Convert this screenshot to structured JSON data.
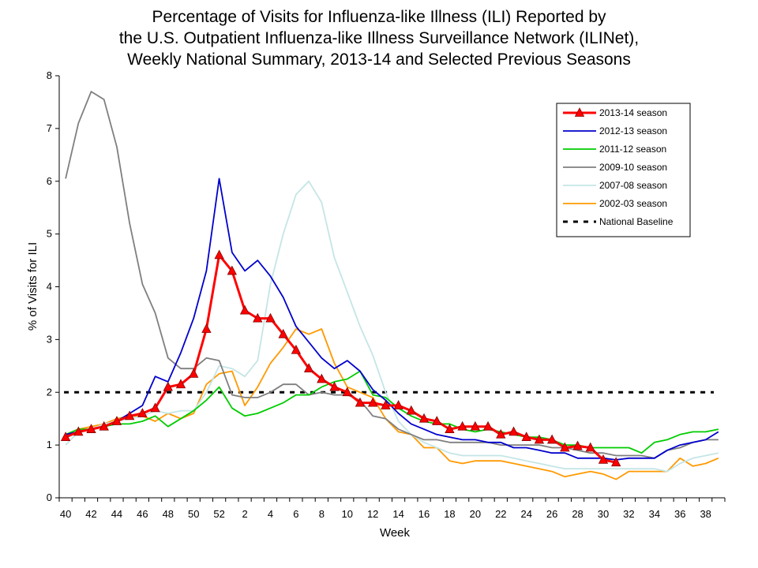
{
  "chart_data": {
    "type": "line",
    "title": [
      "Percentage of Visits for Influenza-like Illness (ILI) Reported by",
      "the U.S. Outpatient Influenza-like Illness Surveillance Network (ILINet),",
      "Weekly National Summary, 2013-14 and Selected Previous Seasons"
    ],
    "xlabel": "Week",
    "ylabel": "% of Visits for ILI",
    "ylim": [
      0,
      8
    ],
    "yticks": [
      0,
      1,
      2,
      3,
      4,
      5,
      6,
      7,
      8
    ],
    "weeks": [
      40,
      41,
      42,
      43,
      44,
      45,
      46,
      47,
      48,
      49,
      50,
      51,
      52,
      1,
      2,
      3,
      4,
      5,
      6,
      7,
      8,
      9,
      10,
      11,
      12,
      13,
      14,
      15,
      16,
      17,
      18,
      19,
      20,
      21,
      22,
      23,
      24,
      25,
      26,
      27,
      28,
      29,
      30,
      31,
      32,
      33,
      34,
      35,
      36,
      37,
      38,
      39
    ],
    "xtick_labels": [
      "40",
      "42",
      "44",
      "46",
      "48",
      "50",
      "52",
      "2",
      "4",
      "6",
      "8",
      "10",
      "12",
      "14",
      "16",
      "18",
      "20",
      "22",
      "24",
      "26",
      "28",
      "30",
      "32",
      "34",
      "36",
      "38"
    ],
    "legend_position": "top-right",
    "baseline": {
      "name": "National Baseline",
      "value": 2.0,
      "color": "#000000"
    },
    "series": [
      {
        "name": "2013-14 season",
        "color": "#ff0000",
        "marker": "triangle",
        "values": [
          1.15,
          1.25,
          1.3,
          1.35,
          1.45,
          1.55,
          1.6,
          1.7,
          2.1,
          2.15,
          2.35,
          3.2,
          4.6,
          4.3,
          3.55,
          3.4,
          3.4,
          3.1,
          2.8,
          2.45,
          2.25,
          2.1,
          2.0,
          1.8,
          1.8,
          1.75,
          1.75,
          1.65,
          1.5,
          1.45,
          1.3,
          1.35,
          1.35,
          1.35,
          1.2,
          1.25,
          1.15,
          1.1,
          1.1,
          0.95,
          0.98,
          0.95,
          0.72,
          0.67
        ]
      },
      {
        "name": "2012-13 season",
        "color": "#0000cc",
        "values": [
          1.2,
          1.25,
          1.3,
          1.35,
          1.45,
          1.6,
          1.75,
          2.3,
          2.2,
          2.75,
          3.4,
          4.3,
          6.05,
          4.65,
          4.3,
          4.5,
          4.2,
          3.8,
          3.25,
          2.95,
          2.65,
          2.45,
          2.6,
          2.4,
          2.05,
          1.85,
          1.6,
          1.4,
          1.3,
          1.2,
          1.15,
          1.1,
          1.1,
          1.05,
          1.05,
          0.95,
          0.95,
          0.9,
          0.85,
          0.85,
          0.75,
          0.75,
          0.75,
          0.72,
          0.75,
          0.75,
          0.75,
          0.9,
          1.0,
          1.05,
          1.1,
          1.25
        ]
      },
      {
        "name": "2011-12 season",
        "color": "#00cc00",
        "values": [
          1.2,
          1.3,
          1.3,
          1.35,
          1.4,
          1.4,
          1.45,
          1.55,
          1.35,
          1.5,
          1.65,
          1.85,
          2.1,
          1.7,
          1.55,
          1.6,
          1.7,
          1.8,
          1.95,
          1.95,
          2.1,
          2.2,
          2.25,
          2.4,
          1.95,
          1.9,
          1.7,
          1.55,
          1.45,
          1.4,
          1.4,
          1.3,
          1.25,
          1.3,
          1.25,
          1.2,
          1.15,
          1.15,
          1.1,
          1.0,
          1.0,
          0.95,
          0.95,
          0.95,
          0.95,
          0.85,
          1.05,
          1.1,
          1.2,
          1.25,
          1.25,
          1.3
        ]
      },
      {
        "name": "2009-10 season",
        "color": "#7f7f7f",
        "values": [
          6.05,
          7.1,
          7.7,
          7.55,
          6.65,
          5.2,
          4.05,
          3.5,
          2.65,
          2.45,
          2.45,
          2.65,
          2.6,
          1.95,
          1.9,
          1.9,
          2.0,
          2.15,
          2.15,
          1.95,
          2.0,
          1.95,
          1.95,
          1.85,
          1.55,
          1.5,
          1.3,
          1.2,
          1.1,
          1.1,
          1.05,
          1.05,
          1.05,
          1.05,
          1.0,
          1.0,
          1.0,
          1.0,
          0.95,
          0.95,
          0.9,
          0.85,
          0.85,
          0.8,
          0.8,
          0.8,
          0.75,
          0.9,
          0.95,
          1.05,
          1.1,
          1.1
        ]
      },
      {
        "name": "2007-08 season",
        "color": "#c5e5e5",
        "values": [
          1.0,
          1.25,
          1.3,
          1.4,
          1.45,
          1.5,
          1.55,
          1.65,
          1.6,
          1.65,
          1.65,
          2.0,
          2.5,
          2.45,
          2.3,
          2.6,
          4.05,
          5.0,
          5.75,
          6.0,
          5.6,
          4.55,
          3.9,
          3.25,
          2.7,
          2.0,
          1.45,
          1.2,
          1.05,
          0.95,
          0.85,
          0.8,
          0.8,
          0.8,
          0.8,
          0.75,
          0.7,
          0.65,
          0.6,
          0.55,
          0.55,
          0.55,
          0.55,
          0.55,
          0.55,
          0.55,
          0.55,
          0.5,
          0.65,
          0.75,
          0.8,
          0.85
        ]
      },
      {
        "name": "2002-03 season",
        "color": "#ff9900",
        "values": [
          1.2,
          1.3,
          1.35,
          1.4,
          1.5,
          1.55,
          1.55,
          1.45,
          1.6,
          1.5,
          1.6,
          2.15,
          2.35,
          2.4,
          1.75,
          2.1,
          2.55,
          2.85,
          3.2,
          3.1,
          3.2,
          2.55,
          2.1,
          2.0,
          1.9,
          1.5,
          1.25,
          1.2,
          0.95,
          0.95,
          0.7,
          0.65,
          0.7,
          0.7,
          0.7,
          0.65,
          0.6,
          0.55,
          0.5,
          0.4,
          0.45,
          0.5,
          0.45,
          0.35,
          0.5,
          0.5,
          0.5,
          0.5,
          0.75,
          0.6,
          0.65,
          0.75
        ]
      }
    ]
  }
}
